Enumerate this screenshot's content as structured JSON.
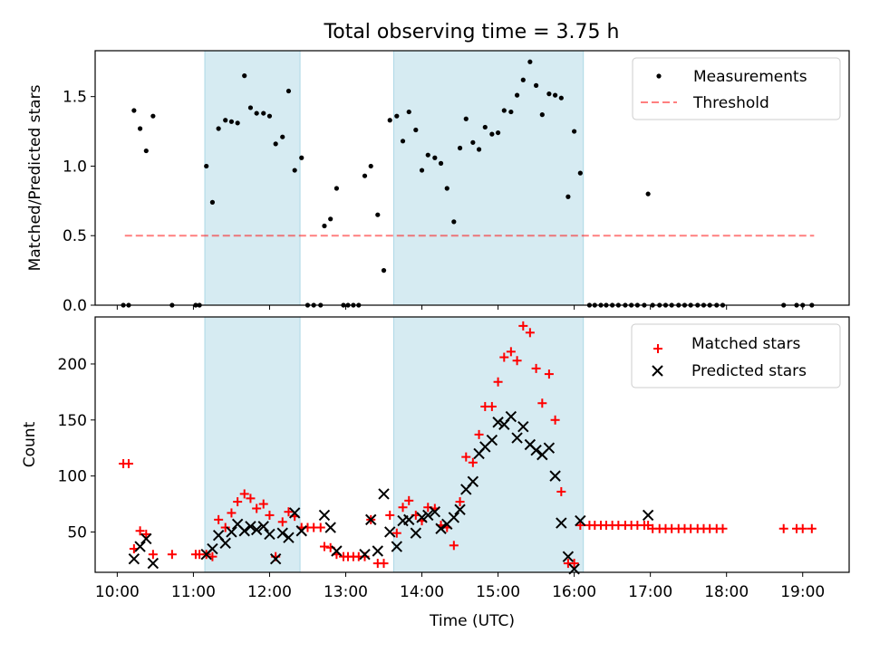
{
  "figure": {
    "title": "Total observing time = 3.75 h",
    "xlabel": "Time (UTC)",
    "x_ticks": [
      {
        "value": 10,
        "label": "10:00"
      },
      {
        "value": 11,
        "label": "11:00"
      },
      {
        "value": 12,
        "label": "12:00"
      },
      {
        "value": 13,
        "label": "13:00"
      },
      {
        "value": 14,
        "label": "14:00"
      },
      {
        "value": 15,
        "label": "15:00"
      },
      {
        "value": 16,
        "label": "16:00"
      },
      {
        "value": 17,
        "label": "17:00"
      },
      {
        "value": 18,
        "label": "18:00"
      },
      {
        "value": 19,
        "label": "19:00"
      }
    ],
    "xlim": [
      9.71,
      19.61
    ],
    "shaded_intervals": [
      [
        11.15,
        12.4
      ],
      [
        13.63,
        16.12
      ]
    ],
    "shade_color": "#add8e6"
  },
  "chart_data": [
    {
      "type": "scatter",
      "ylabel": "Matched/Predicted stars",
      "ylim": [
        0,
        1.83
      ],
      "y_ticks": [
        "0.0",
        "0.5",
        "1.0",
        "1.5"
      ],
      "y_tick_values": [
        0,
        0.5,
        1.0,
        1.5
      ],
      "legend_position": "upper-right",
      "threshold": {
        "name": "Threshold",
        "y": 0.5,
        "x_range": [
          10.1,
          19.15
        ],
        "color": "#ff0000"
      },
      "series": [
        {
          "name": "Measurements",
          "color": "#000000",
          "points": [
            [
              10.08,
              0
            ],
            [
              10.15,
              0
            ],
            [
              10.22,
              1.4
            ],
            [
              10.3,
              1.27
            ],
            [
              10.38,
              1.11
            ],
            [
              10.47,
              1.36
            ],
            [
              10.72,
              0
            ],
            [
              11.03,
              0
            ],
            [
              11.08,
              0
            ],
            [
              11.17,
              1.0
            ],
            [
              11.25,
              0.74
            ],
            [
              11.33,
              1.27
            ],
            [
              11.42,
              1.33
            ],
            [
              11.5,
              1.32
            ],
            [
              11.58,
              1.31
            ],
            [
              11.67,
              1.65
            ],
            [
              11.75,
              1.42
            ],
            [
              11.83,
              1.38
            ],
            [
              11.92,
              1.38
            ],
            [
              12.0,
              1.36
            ],
            [
              12.08,
              1.16
            ],
            [
              12.17,
              1.21
            ],
            [
              12.25,
              1.54
            ],
            [
              12.33,
              0.97
            ],
            [
              12.42,
              1.06
            ],
            [
              12.5,
              0
            ],
            [
              12.58,
              0
            ],
            [
              12.67,
              0
            ],
            [
              12.72,
              0.57
            ],
            [
              12.8,
              0.62
            ],
            [
              12.88,
              0.84
            ],
            [
              12.97,
              0
            ],
            [
              13.03,
              0
            ],
            [
              13.1,
              0
            ],
            [
              13.17,
              0
            ],
            [
              13.25,
              0.93
            ],
            [
              13.33,
              1.0
            ],
            [
              13.42,
              0.65
            ],
            [
              13.5,
              0.25
            ],
            [
              13.58,
              1.33
            ],
            [
              13.67,
              1.36
            ],
            [
              13.75,
              1.18
            ],
            [
              13.83,
              1.39
            ],
            [
              13.92,
              1.26
            ],
            [
              14.0,
              0.97
            ],
            [
              14.08,
              1.08
            ],
            [
              14.17,
              1.06
            ],
            [
              14.25,
              1.02
            ],
            [
              14.33,
              0.84
            ],
            [
              14.42,
              0.6
            ],
            [
              14.5,
              1.13
            ],
            [
              14.58,
              1.34
            ],
            [
              14.67,
              1.17
            ],
            [
              14.75,
              1.12
            ],
            [
              14.83,
              1.28
            ],
            [
              14.92,
              1.23
            ],
            [
              15.0,
              1.24
            ],
            [
              15.08,
              1.4
            ],
            [
              15.17,
              1.39
            ],
            [
              15.25,
              1.51
            ],
            [
              15.33,
              1.62
            ],
            [
              15.42,
              1.75
            ],
            [
              15.5,
              1.58
            ],
            [
              15.58,
              1.37
            ],
            [
              15.67,
              1.52
            ],
            [
              15.75,
              1.51
            ],
            [
              15.83,
              1.49
            ],
            [
              15.92,
              0.78
            ],
            [
              16.0,
              1.25
            ],
            [
              16.08,
              0.95
            ],
            [
              16.2,
              0
            ],
            [
              16.27,
              0
            ],
            [
              16.35,
              0
            ],
            [
              16.42,
              0
            ],
            [
              16.5,
              0
            ],
            [
              16.58,
              0
            ],
            [
              16.67,
              0
            ],
            [
              16.75,
              0
            ],
            [
              16.83,
              0
            ],
            [
              16.92,
              0
            ],
            [
              16.97,
              0.8
            ],
            [
              17.03,
              0
            ],
            [
              17.12,
              0
            ],
            [
              17.2,
              0
            ],
            [
              17.28,
              0
            ],
            [
              17.37,
              0
            ],
            [
              17.45,
              0
            ],
            [
              17.53,
              0
            ],
            [
              17.62,
              0
            ],
            [
              17.7,
              0
            ],
            [
              17.78,
              0
            ],
            [
              17.87,
              0
            ],
            [
              17.95,
              0
            ],
            [
              18.75,
              0
            ],
            [
              18.92,
              0
            ],
            [
              19.0,
              0
            ],
            [
              19.12,
              0
            ]
          ]
        }
      ]
    },
    {
      "type": "scatter",
      "ylabel": "Count",
      "ylim": [
        14,
        242
      ],
      "y_ticks": [
        "50",
        "100",
        "150",
        "200"
      ],
      "y_tick_values": [
        50,
        100,
        150,
        200
      ],
      "legend_position": "upper-right",
      "series": [
        {
          "name": "Matched stars",
          "color": "#ff0000",
          "marker": "+",
          "points": [
            [
              10.08,
              111
            ],
            [
              10.15,
              111
            ],
            [
              10.22,
              35
            ],
            [
              10.3,
              51
            ],
            [
              10.38,
              48
            ],
            [
              10.47,
              30
            ],
            [
              10.72,
              30
            ],
            [
              11.03,
              30
            ],
            [
              11.08,
              30
            ],
            [
              11.17,
              30
            ],
            [
              11.25,
              28
            ],
            [
              11.33,
              61
            ],
            [
              11.42,
              54
            ],
            [
              11.5,
              67
            ],
            [
              11.58,
              77
            ],
            [
              11.67,
              84
            ],
            [
              11.75,
              80
            ],
            [
              11.83,
              71
            ],
            [
              11.92,
              75
            ],
            [
              12.0,
              65
            ],
            [
              12.08,
              28
            ],
            [
              12.17,
              59
            ],
            [
              12.25,
              68
            ],
            [
              12.33,
              64
            ],
            [
              12.42,
              54
            ],
            [
              12.5,
              54
            ],
            [
              12.58,
              54
            ],
            [
              12.67,
              54
            ],
            [
              12.72,
              37
            ],
            [
              12.8,
              36
            ],
            [
              12.88,
              30
            ],
            [
              12.97,
              28
            ],
            [
              13.03,
              28
            ],
            [
              13.1,
              28
            ],
            [
              13.17,
              28
            ],
            [
              13.25,
              28
            ],
            [
              13.33,
              61
            ],
            [
              13.42,
              22
            ],
            [
              13.5,
              22
            ],
            [
              13.58,
              65
            ],
            [
              13.67,
              49
            ],
            [
              13.75,
              72
            ],
            [
              13.83,
              78
            ],
            [
              13.92,
              65
            ],
            [
              14.0,
              60
            ],
            [
              14.08,
              72
            ],
            [
              14.17,
              71
            ],
            [
              14.25,
              56
            ],
            [
              14.33,
              54
            ],
            [
              14.42,
              38
            ],
            [
              14.5,
              77
            ],
            [
              14.58,
              117
            ],
            [
              14.67,
              112
            ],
            [
              14.75,
              137
            ],
            [
              14.83,
              162
            ],
            [
              14.92,
              162
            ],
            [
              15.0,
              184
            ],
            [
              15.08,
              206
            ],
            [
              15.17,
              211
            ],
            [
              15.25,
              203
            ],
            [
              15.33,
              234
            ],
            [
              15.42,
              228
            ],
            [
              15.5,
              196
            ],
            [
              15.58,
              165
            ],
            [
              15.67,
              191
            ],
            [
              15.75,
              150
            ],
            [
              15.83,
              86
            ],
            [
              15.92,
              22
            ],
            [
              16.0,
              22
            ],
            [
              16.08,
              56
            ],
            [
              16.2,
              56
            ],
            [
              16.27,
              56
            ],
            [
              16.35,
              56
            ],
            [
              16.42,
              56
            ],
            [
              16.5,
              56
            ],
            [
              16.58,
              56
            ],
            [
              16.67,
              56
            ],
            [
              16.75,
              56
            ],
            [
              16.83,
              56
            ],
            [
              16.92,
              56
            ],
            [
              16.97,
              56
            ],
            [
              17.03,
              53
            ],
            [
              17.12,
              53
            ],
            [
              17.2,
              53
            ],
            [
              17.28,
              53
            ],
            [
              17.37,
              53
            ],
            [
              17.45,
              53
            ],
            [
              17.53,
              53
            ],
            [
              17.62,
              53
            ],
            [
              17.7,
              53
            ],
            [
              17.78,
              53
            ],
            [
              17.87,
              53
            ],
            [
              17.95,
              53
            ],
            [
              18.75,
              53
            ],
            [
              18.92,
              53
            ],
            [
              19.0,
              53
            ],
            [
              19.12,
              53
            ]
          ]
        },
        {
          "name": "Predicted stars",
          "color": "#000000",
          "marker": "x",
          "points": [
            [
              10.22,
              26
            ],
            [
              10.3,
              37
            ],
            [
              10.38,
              44
            ],
            [
              10.47,
              22
            ],
            [
              11.17,
              30
            ],
            [
              11.25,
              35
            ],
            [
              11.33,
              47
            ],
            [
              11.42,
              40
            ],
            [
              11.5,
              50
            ],
            [
              11.58,
              57
            ],
            [
              11.67,
              51
            ],
            [
              11.75,
              55
            ],
            [
              11.83,
              52
            ],
            [
              11.92,
              55
            ],
            [
              12.0,
              48
            ],
            [
              12.08,
              26
            ],
            [
              12.17,
              49
            ],
            [
              12.25,
              45
            ],
            [
              12.33,
              67
            ],
            [
              12.42,
              51
            ],
            [
              12.72,
              65
            ],
            [
              12.8,
              54
            ],
            [
              12.88,
              33
            ],
            [
              13.25,
              30
            ],
            [
              13.33,
              61
            ],
            [
              13.42,
              33
            ],
            [
              13.5,
              84
            ],
            [
              13.58,
              50
            ],
            [
              13.67,
              37
            ],
            [
              13.75,
              60
            ],
            [
              13.83,
              61
            ],
            [
              13.92,
              49
            ],
            [
              14.0,
              63
            ],
            [
              14.08,
              65
            ],
            [
              14.17,
              68
            ],
            [
              14.25,
              53
            ],
            [
              14.33,
              57
            ],
            [
              14.42,
              63
            ],
            [
              14.5,
              70
            ],
            [
              14.58,
              88
            ],
            [
              14.67,
              95
            ],
            [
              14.75,
              120
            ],
            [
              14.83,
              126
            ],
            [
              14.92,
              132
            ],
            [
              15.0,
              148
            ],
            [
              15.08,
              146
            ],
            [
              15.17,
              153
            ],
            [
              15.25,
              134
            ],
            [
              15.33,
              144
            ],
            [
              15.42,
              128
            ],
            [
              15.5,
              123
            ],
            [
              15.58,
              119
            ],
            [
              15.67,
              125
            ],
            [
              15.75,
              100
            ],
            [
              15.83,
              58
            ],
            [
              15.92,
              28
            ],
            [
              16.0,
              17
            ],
            [
              16.08,
              60
            ],
            [
              16.97,
              65
            ]
          ]
        }
      ]
    }
  ]
}
